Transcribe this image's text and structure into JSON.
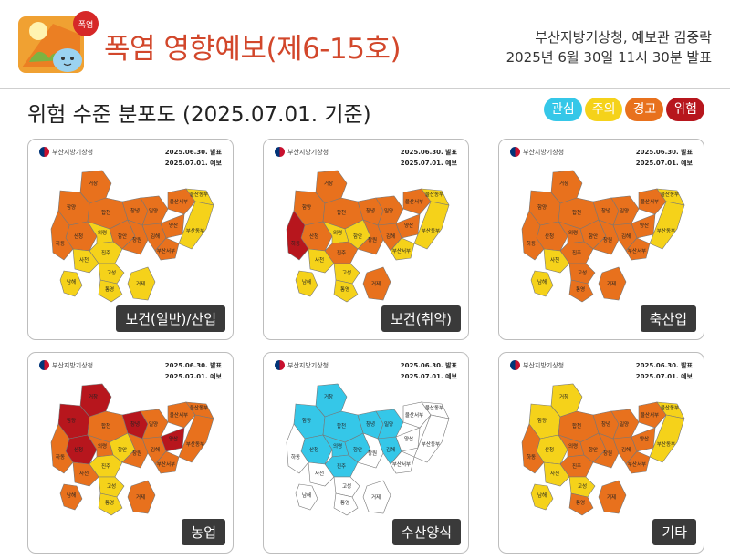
{
  "header": {
    "badge": "폭염",
    "title": "폭염 영향예보(제6-15호)",
    "issuer_line1": "부산지방기상청, 예보관 김중락",
    "issuer_line2": "2025년 6월 30일 11시 30분 발표"
  },
  "subtitle": "위험 수준 분포도 (2025.07.01. 기준)",
  "legend": [
    {
      "label": "관심",
      "color": "#35c7e8"
    },
    {
      "label": "주의",
      "color": "#f5d21a"
    },
    {
      "label": "경고",
      "color": "#e8711d"
    },
    {
      "label": "위험",
      "color": "#b7161d"
    }
  ],
  "card_common": {
    "agency": "부산지방기상청",
    "issued": "2025.06.30. 발표",
    "forecast": "2025.07.01. 예보"
  },
  "region_labels": [
    "거창",
    "함양",
    "합천",
    "창녕",
    "밀양",
    "울산서부",
    "울산동부",
    "산청",
    "의령",
    "함안",
    "창원",
    "김해",
    "양산",
    "부산서부",
    "부산동부",
    "하동",
    "진주",
    "사천",
    "고성",
    "통영",
    "거제",
    "남해"
  ],
  "cards": [
    {
      "label": "보건(일반)/산업",
      "levels": {
        "거창": "경고",
        "함양": "경고",
        "합천": "경고",
        "창녕": "경고",
        "밀양": "경고",
        "울산서부": "경고",
        "울산동부": "주의",
        "산청": "경고",
        "의령": "주의",
        "함안": "경고",
        "창원": "경고",
        "김해": "경고",
        "양산": "경고",
        "부산서부": "경고",
        "부산동부": "주의",
        "하동": "경고",
        "진주": "주의",
        "사천": "주의",
        "고성": "주의",
        "통영": "주의",
        "거제": "주의",
        "남해": "주의"
      }
    },
    {
      "label": "보건(취약)",
      "levels": {
        "거창": "경고",
        "함양": "경고",
        "합천": "경고",
        "창녕": "경고",
        "밀양": "경고",
        "울산서부": "경고",
        "울산동부": "주의",
        "산청": "경고",
        "의령": "주의",
        "함안": "주의",
        "창원": "경고",
        "김해": "경고",
        "양산": "경고",
        "부산서부": "주의",
        "부산동부": "주의",
        "하동": "위험",
        "진주": "경고",
        "사천": "주의",
        "고성": "주의",
        "통영": "주의",
        "거제": "경고",
        "남해": "주의"
      }
    },
    {
      "label": "축산업",
      "levels": {
        "거창": "경고",
        "함양": "경고",
        "합천": "경고",
        "창녕": "경고",
        "밀양": "경고",
        "울산서부": "경고",
        "울산동부": "주의",
        "산청": "경고",
        "의령": "경고",
        "함안": "경고",
        "창원": "경고",
        "김해": "경고",
        "양산": "경고",
        "부산서부": "경고",
        "부산동부": "주의",
        "하동": "경고",
        "진주": "경고",
        "사천": "주의",
        "고성": "경고",
        "통영": "경고",
        "거제": "경고",
        "남해": "주의"
      }
    },
    {
      "label": "농업",
      "levels": {
        "거창": "위험",
        "함양": "위험",
        "합천": "경고",
        "창녕": "위험",
        "밀양": "경고",
        "울산서부": "경고",
        "울산동부": "경고",
        "산청": "위험",
        "의령": "경고",
        "함안": "주의",
        "창원": "경고",
        "김해": "경고",
        "양산": "위험",
        "부산서부": "경고",
        "부산동부": "경고",
        "하동": "경고",
        "진주": "주의",
        "사천": "경고",
        "고성": "주의",
        "통영": "주의",
        "거제": "경고",
        "남해": "경고"
      }
    },
    {
      "label": "수산양식",
      "levels": {
        "거창": "관심",
        "함양": "관심",
        "합천": "관심",
        "창녕": "관심",
        "밀양": "관심",
        "울산서부": "없음",
        "울산동부": "없음",
        "산청": "관심",
        "의령": "관심",
        "함안": "관심",
        "창원": "없음",
        "김해": "관심",
        "양산": "없음",
        "부산서부": "없음",
        "부산동부": "없음",
        "하동": "없음",
        "진주": "관심",
        "사천": "없음",
        "고성": "없음",
        "통영": "없음",
        "거제": "없음",
        "남해": "없음"
      }
    },
    {
      "label": "기타",
      "levels": {
        "거창": "주의",
        "함양": "주의",
        "합천": "경고",
        "창녕": "경고",
        "밀양": "경고",
        "울산서부": "경고",
        "울산동부": "주의",
        "산청": "주의",
        "의령": "경고",
        "함안": "경고",
        "창원": "경고",
        "김해": "경고",
        "양산": "경고",
        "부산서부": "경고",
        "부산동부": "주의",
        "하동": "경고",
        "진주": "경고",
        "사천": "주의",
        "고성": "주의",
        "통영": "경고",
        "거제": "경고",
        "남해": "주의"
      }
    }
  ]
}
